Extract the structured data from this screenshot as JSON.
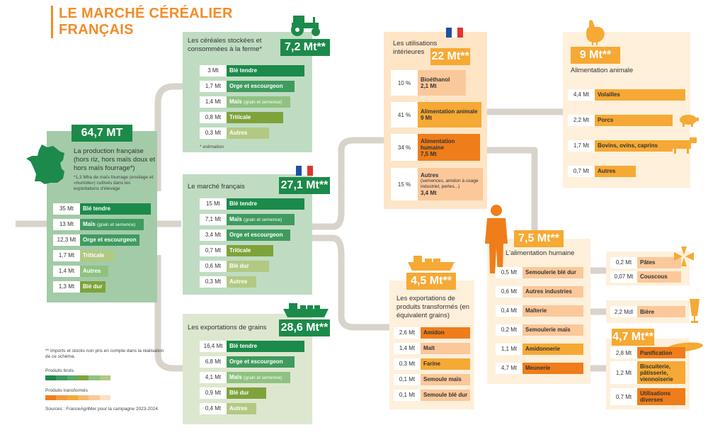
{
  "title": {
    "line1": "LE MARCHÉ CÉRÉALIER",
    "line2": "FRANÇAIS"
  },
  "colors": {
    "green_dark": "#1c8a4a",
    "green_mid": "#3f9b5e",
    "green_light": "#8fc280",
    "olive": "#7ea33a",
    "olive_light": "#b2c983",
    "orange_dark": "#ef7d1a",
    "orange_mid": "#f6a934",
    "orange_light": "#fbc89a",
    "pipe": "#d8d3cb"
  },
  "production": {
    "badge": "64,7 MT",
    "heading": "La production française (hors riz, hors maïs doux et hors maïs fourrage*)",
    "note": "*1,3 Mha de maïs fourrage (ensilage et «humide») cultivés dans les exploitations d'élevage",
    "rows": [
      {
        "value": "35 Mt",
        "label": "Blé tendre",
        "sub": ""
      },
      {
        "value": "13 Mt",
        "label": "Maïs",
        "sub": "(grain et semence)"
      },
      {
        "value": "12,3 Mt",
        "label": "Orge et escourgeon",
        "sub": ""
      },
      {
        "value": "1,7 Mt",
        "label": "Triticale",
        "sub": ""
      },
      {
        "value": "1,4 Mt",
        "label": "Autres",
        "sub": ""
      },
      {
        "value": "1,3 Mt",
        "label": "Blé dur",
        "sub": ""
      }
    ]
  },
  "farm": {
    "heading": "Les céréales stockées et consommées à la ferme*",
    "badge": "7,2 Mt**",
    "note": "* estimation",
    "rows": [
      {
        "value": "3 Mt",
        "label": "Blé tendre",
        "sub": ""
      },
      {
        "value": "1,7 Mt",
        "label": "Orge et escourgeon",
        "sub": ""
      },
      {
        "value": "1,4 Mt",
        "label": "Maïs",
        "sub": "(grain et semence)"
      },
      {
        "value": "0,8 Mt",
        "label": "Triticale",
        "sub": ""
      },
      {
        "value": "0,3 Mt",
        "label": "Autres",
        "sub": ""
      }
    ]
  },
  "market": {
    "heading": "Le marché français",
    "badge": "27,1 Mt**",
    "rows": [
      {
        "value": "15 Mt",
        "label": "Blé tendre",
        "sub": ""
      },
      {
        "value": "7,1 Mt",
        "label": "Maïs",
        "sub": "(grain et semence)"
      },
      {
        "value": "3,4 Mt",
        "label": "Orge et escourgeon",
        "sub": ""
      },
      {
        "value": "0,7 Mt",
        "label": "Triticale",
        "sub": ""
      },
      {
        "value": "0,6 Mt",
        "label": "Blé dur",
        "sub": ""
      },
      {
        "value": "0,3 Mt",
        "label": "Autres",
        "sub": ""
      }
    ]
  },
  "grain_exports": {
    "heading": "Les exportations de grains",
    "badge": "28,6 Mt**",
    "rows": [
      {
        "value": "16,4 Mt",
        "label": "Blé tendre",
        "sub": ""
      },
      {
        "value": "6,8 Mt",
        "label": "Orge et escourgeon",
        "sub": ""
      },
      {
        "value": "4,1 Mt",
        "label": "Maïs",
        "sub": "(grain et semence)"
      },
      {
        "value": "0,9 Mt",
        "label": "Blé dur",
        "sub": ""
      },
      {
        "value": "0,4 Mt",
        "label": "Autres",
        "sub": ""
      }
    ]
  },
  "domestic_uses": {
    "heading": "Les utilisations intérieures",
    "badge": "22 Mt**",
    "rows": [
      {
        "value": "10 %",
        "label": "Bioéthanol",
        "detail": "2,1 Mt",
        "sub": ""
      },
      {
        "value": "41 %",
        "label": "Alimentation animale",
        "detail": "9 Mt",
        "sub": ""
      },
      {
        "value": "34 %",
        "label": "Alimentation humaine",
        "detail": "7,5 Mt",
        "sub": ""
      },
      {
        "value": "15 %",
        "label": "Autres",
        "detail": "3,4 Mt",
        "sub": "(semences, amidon à usage industriel, pertes...)"
      }
    ]
  },
  "animal_feed": {
    "badge": "9 Mt**",
    "heading": "Alimentation animale",
    "rows": [
      {
        "value": "4,4 Mt",
        "label": "Volailles"
      },
      {
        "value": "2,2 Mt",
        "label": "Porcs"
      },
      {
        "value": "1,7 Mt",
        "label": "Bovins, ovins, caprins"
      },
      {
        "value": "0,7 Mt",
        "label": "Autres"
      }
    ]
  },
  "human_food": {
    "badge": "7,5 Mt**",
    "heading": "L'alimentation humaine",
    "rows": [
      {
        "value": "0,5 Mt",
        "label": "Semoulerie blé dur"
      },
      {
        "value": "0,6 Mt",
        "label": "Autres industries"
      },
      {
        "value": "0,4 Mt",
        "label": "Malterie"
      },
      {
        "value": "0,2 Mt",
        "label": "Semoulerie maïs"
      },
      {
        "value": "1,1 Mt",
        "label": "Amidonnerie"
      },
      {
        "value": "4,7 Mt",
        "label": "Meunerie"
      }
    ]
  },
  "pasta": {
    "rows": [
      {
        "value": "0,2 Mt",
        "label": "Pâtes"
      },
      {
        "value": "0,07 Mt",
        "label": "Couscous"
      }
    ]
  },
  "beer": {
    "value": "2,2 Mdl",
    "label": "Bière"
  },
  "milling": {
    "badge": "4,7 Mt**",
    "rows": [
      {
        "value": "2,8 Mt",
        "label": "Panification"
      },
      {
        "value": "1,2 Mt",
        "label": "Biscuiterie, pâtisserie, viennoiserie"
      },
      {
        "value": "0,7 Mt",
        "label": "Utilisations diverses"
      }
    ]
  },
  "processed_exports": {
    "badge": "4,5 Mt**",
    "heading": "Les exportations de produits transformés (en équivalent grains)",
    "rows": [
      {
        "value": "2,6 Mt",
        "label": "Amidon"
      },
      {
        "value": "1,4 Mt",
        "label": "Malt"
      },
      {
        "value": "0,3 Mt",
        "label": "Farine"
      },
      {
        "value": "0,1 Mt",
        "label": "Semoule maïs"
      },
      {
        "value": "0,1 Mt",
        "label": "Semoule blé dur"
      }
    ]
  },
  "legend": {
    "note": "** Imports et stocks non pris en compte dans la réalisation de ce schéma.",
    "raw": "Produits bruts",
    "processed": "Produits transformés",
    "source": "Sources : FranceAgriMer pour la campagne 2023-2024"
  }
}
